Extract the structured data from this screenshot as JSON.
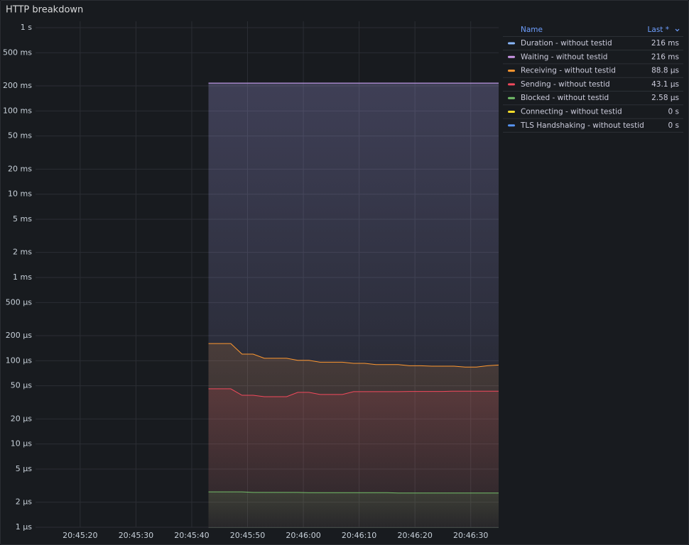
{
  "chart_data": {
    "type": "line",
    "title": "HTTP breakdown",
    "log_scale": true,
    "grid": true,
    "ylim": [
      1,
      1000000
    ],
    "yticks": [
      {
        "value": 1000000,
        "label": "1 s"
      },
      {
        "value": 500000,
        "label": "500 ms"
      },
      {
        "value": 200000,
        "label": "200 ms"
      },
      {
        "value": 100000,
        "label": "100 ms"
      },
      {
        "value": 50000,
        "label": "50 ms"
      },
      {
        "value": 20000,
        "label": "20 ms"
      },
      {
        "value": 10000,
        "label": "10 ms"
      },
      {
        "value": 5000,
        "label": "5 ms"
      },
      {
        "value": 2000,
        "label": "2 ms"
      },
      {
        "value": 1000,
        "label": "1 ms"
      },
      {
        "value": 500,
        "label": "500 µs"
      },
      {
        "value": 200,
        "label": "200 µs"
      },
      {
        "value": 100,
        "label": "100 µs"
      },
      {
        "value": 50,
        "label": "50 µs"
      },
      {
        "value": 20,
        "label": "20 µs"
      },
      {
        "value": 10,
        "label": "10 µs"
      },
      {
        "value": 5,
        "label": "5 µs"
      },
      {
        "value": 2,
        "label": "2 µs"
      },
      {
        "value": 1,
        "label": "1 µs"
      }
    ],
    "xlim": [
      "20:45:12",
      "20:46:35"
    ],
    "xticks": [
      "20:45:20",
      "20:45:30",
      "20:45:40",
      "20:45:50",
      "20:46:00",
      "20:46:10",
      "20:46:20",
      "20:46:30"
    ],
    "x": [
      "20:45:43",
      "20:45:45",
      "20:45:47",
      "20:45:49",
      "20:45:51",
      "20:45:53",
      "20:45:55",
      "20:45:57",
      "20:45:59",
      "20:46:01",
      "20:46:03",
      "20:46:05",
      "20:46:07",
      "20:46:09",
      "20:46:11",
      "20:46:13",
      "20:46:15",
      "20:46:17",
      "20:46:19",
      "20:46:21",
      "20:46:23",
      "20:46:25",
      "20:46:27",
      "20:46:29",
      "20:46:31",
      "20:46:33",
      "20:46:35"
    ],
    "legend": {
      "position": "right",
      "columns": [
        "Name",
        "Last *"
      ]
    },
    "series": [
      {
        "name": "Duration - without testid",
        "color": "#8ab8ff",
        "area": true,
        "values": [
          216000,
          216000,
          216000,
          216000,
          216000,
          216000,
          216000,
          216000,
          216000,
          216000,
          216000,
          216000,
          216000,
          216000,
          216000,
          216000,
          216000,
          216000,
          216000,
          216000,
          216000,
          216000,
          216000,
          216000,
          216000,
          216000,
          216000
        ],
        "last": {
          "value": 216000,
          "label": "216 ms"
        }
      },
      {
        "name": "Waiting - without testid",
        "color": "#ca95e5",
        "area": true,
        "values": [
          216000,
          216000,
          216000,
          216000,
          216000,
          216000,
          216000,
          216000,
          216000,
          216000,
          216000,
          216000,
          216000,
          216000,
          216000,
          216000,
          216000,
          216000,
          216000,
          216000,
          216000,
          216000,
          216000,
          216000,
          216000,
          216000,
          216000
        ],
        "last": {
          "value": 216000,
          "label": "216 ms"
        }
      },
      {
        "name": "Receiving - without testid",
        "color": "#ff9830",
        "area": true,
        "values": [
          161,
          161,
          161,
          120,
          120,
          107,
          107,
          107,
          101,
          101,
          96,
          96,
          96,
          93,
          93,
          90,
          90,
          90,
          87,
          87,
          86,
          86,
          86,
          84,
          84,
          87,
          88.8
        ],
        "last": {
          "value": 88.8,
          "label": "88.8 µs"
        }
      },
      {
        "name": "Sending - without testid",
        "color": "#f2495c",
        "area": true,
        "values": [
          46,
          46,
          46,
          38.5,
          38.5,
          37,
          37,
          37,
          41.7,
          41.7,
          39.3,
          39.3,
          39.3,
          42.5,
          42.5,
          42.5,
          42.5,
          42.5,
          42.8,
          42.8,
          42.8,
          42.8,
          43.1,
          43.1,
          43.1,
          43.1,
          43.1
        ],
        "last": {
          "value": 43.1,
          "label": "43.1 µs"
        }
      },
      {
        "name": "Blocked - without testid",
        "color": "#73bf69",
        "area": true,
        "values": [
          2.66,
          2.66,
          2.66,
          2.66,
          2.62,
          2.62,
          2.62,
          2.62,
          2.62,
          2.6,
          2.6,
          2.6,
          2.6,
          2.6,
          2.6,
          2.6,
          2.6,
          2.58,
          2.58,
          2.58,
          2.58,
          2.58,
          2.58,
          2.58,
          2.58,
          2.58,
          2.58
        ],
        "last": {
          "value": 2.58,
          "label": "2.58 µs"
        }
      },
      {
        "name": "Connecting - without testid",
        "color": "#fade2a",
        "area": true,
        "values": [
          0,
          0,
          0,
          0,
          0,
          0,
          0,
          0,
          0,
          0,
          0,
          0,
          0,
          0,
          0,
          0,
          0,
          0,
          0,
          0,
          0,
          0,
          0,
          0,
          0,
          0,
          0
        ],
        "last": {
          "value": 0,
          "label": "0 s"
        }
      },
      {
        "name": "TLS Handshaking - without testid",
        "color": "#5794f2",
        "area": true,
        "values": [
          0,
          0,
          0,
          0,
          0,
          0,
          0,
          0,
          0,
          0,
          0,
          0,
          0,
          0,
          0,
          0,
          0,
          0,
          0,
          0,
          0,
          0,
          0,
          0,
          0,
          0,
          0
        ],
        "last": {
          "value": 0,
          "label": "0 s"
        }
      }
    ]
  }
}
